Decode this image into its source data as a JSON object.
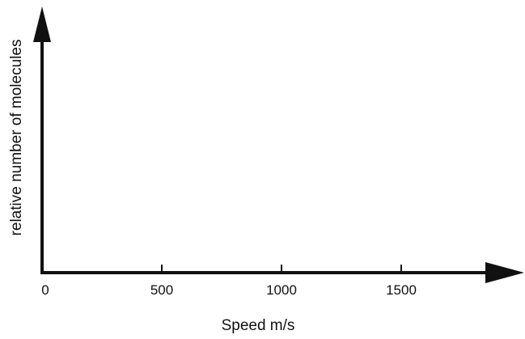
{
  "chart_data": {
    "type": "line",
    "title": "",
    "xlabel": "Speed m/s",
    "ylabel": "relative number of molecules",
    "x_ticks": [
      0,
      500,
      1000,
      1500
    ],
    "x_tick_labels": [
      "0",
      "500",
      "1000",
      "1500"
    ],
    "xlim": [
      0,
      1700
    ],
    "y_ticks": [],
    "grid": false,
    "series": []
  }
}
